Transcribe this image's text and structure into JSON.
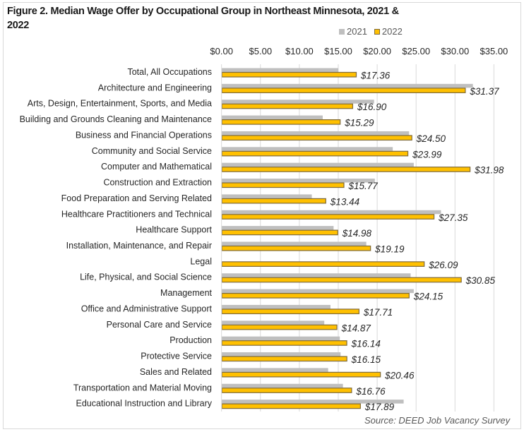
{
  "chart_data": {
    "type": "bar",
    "orientation": "horizontal",
    "title": "Figure 2. Median Wage Offer by Occupational Group in Northeast Minnesota, 2021 & 2022",
    "title_lines": [
      "Figure 2. Median Wage Offer by Occupational Group in Northeast Minnesota, 2021 &",
      "2022"
    ],
    "xlabel": "",
    "ylabel": "",
    "xlim": [
      0,
      35
    ],
    "x_ticks": [
      0,
      5,
      10,
      15,
      20,
      25,
      30,
      35
    ],
    "x_tick_labels": [
      "$0.00",
      "$5.00",
      "$10.00",
      "$15.00",
      "$20.00",
      "$25.00",
      "$30.00",
      "$35.00"
    ],
    "x_axis_position": "top",
    "grid": true,
    "legend_position": "top-right",
    "categories": [
      "Total, All Occupations",
      "Architecture and Engineering",
      "Arts, Design, Entertainment, Sports, and Media",
      "Building and Grounds Cleaning and Maintenance",
      "Business and Financial Operations",
      "Community and Social Service",
      "Computer and Mathematical",
      "Construction and Extraction",
      "Food Preparation and Serving Related",
      "Healthcare Practitioners and Technical",
      "Healthcare Support",
      "Installation, Maintenance, and Repair",
      "Legal",
      "Life, Physical, and Social Science",
      "Management",
      "Office and Administrative Support",
      "Personal Care and Service",
      "Production",
      "Protective Service",
      "Sales and Related",
      "Transportation and Material Moving",
      "Educational Instruction and Library"
    ],
    "series": [
      {
        "name": "2021",
        "color": "#bfbfbf",
        "values": [
          15.0,
          32.3,
          19.6,
          13.0,
          24.1,
          22.0,
          24.7,
          19.7,
          11.6,
          28.2,
          14.4,
          18.6,
          null,
          24.3,
          24.7,
          14.0,
          13.2,
          15.2,
          15.3,
          13.7,
          15.6,
          23.4
        ],
        "data_labels": false
      },
      {
        "name": "2022",
        "color": "#ffc000",
        "border_color": "#7f6a3a",
        "values": [
          17.36,
          31.37,
          16.9,
          15.29,
          24.5,
          23.99,
          31.98,
          15.77,
          13.44,
          27.35,
          14.98,
          19.19,
          26.09,
          30.85,
          24.15,
          17.71,
          14.87,
          16.14,
          16.15,
          20.46,
          16.76,
          17.89
        ],
        "value_labels": [
          "$17.36",
          "$31.37",
          "$16.90",
          "$15.29",
          "$24.50",
          "$23.99",
          "$31.98",
          "$15.77",
          "$13.44",
          "$27.35",
          "$14.98",
          "$19.19",
          "$26.09",
          "$30.85",
          "$24.15",
          "$17.71",
          "$14.87",
          "$16.14",
          "$16.15",
          "$20.46",
          "$16.76",
          "$17.89"
        ],
        "data_labels": true
      }
    ],
    "source": "Source: DEED Job Vacancy Survey"
  },
  "legend": {
    "items": [
      {
        "label": "2021",
        "color": "#bfbfbf"
      },
      {
        "label": "2022",
        "color": "#ffc000"
      }
    ]
  }
}
